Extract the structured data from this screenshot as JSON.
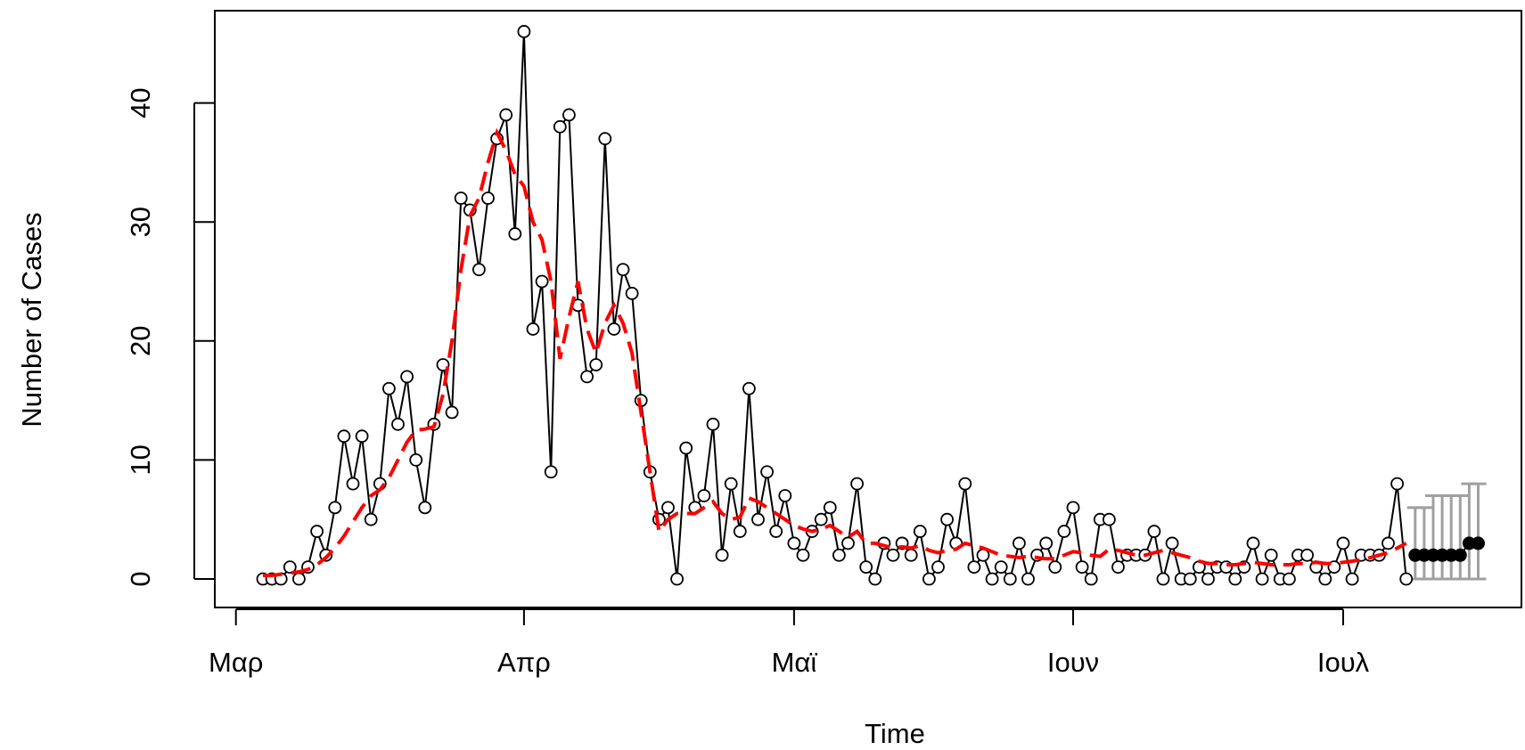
{
  "chart_data": {
    "type": "line",
    "xlabel": "Time",
    "ylabel": "Number of Cases",
    "ylim": [
      0,
      46
    ],
    "grid": false,
    "x_tick_labels": [
      "Μαρ",
      "Απρ",
      "Μαϊ",
      "Ιουν",
      "Ιουλ"
    ],
    "y_ticks": [
      0,
      10,
      20,
      30,
      40
    ],
    "colors": {
      "observed": "#000000",
      "fitted": "#ff0000",
      "forecast": "#000000",
      "interval": "#a0a0a0"
    },
    "series": [
      {
        "style": "black line with open circle markers",
        "values": [
          0,
          0,
          0,
          1,
          0,
          1,
          4,
          2,
          6,
          12,
          8,
          12,
          5,
          8,
          16,
          13,
          17,
          10,
          6,
          13,
          18,
          14,
          32,
          31,
          26,
          32,
          37,
          39,
          29,
          46,
          21,
          25,
          9,
          38,
          39,
          23,
          17,
          18,
          37,
          21,
          26,
          24,
          15,
          9,
          5,
          6,
          0,
          11,
          6,
          7,
          13,
          2,
          8,
          4,
          16,
          5,
          9,
          4,
          7,
          3,
          2,
          4,
          5,
          6,
          2,
          3,
          8,
          1,
          0,
          3,
          2,
          3,
          2,
          4,
          0,
          1,
          5,
          3,
          8,
          1,
          2,
          0,
          1,
          0,
          3,
          0,
          2,
          3,
          1,
          4,
          6,
          1,
          0,
          5,
          5,
          1,
          2,
          2,
          2,
          4,
          0,
          3,
          0,
          0,
          1,
          0,
          1,
          1,
          0,
          1,
          3,
          0,
          2,
          0,
          0,
          2,
          2,
          1,
          0,
          1,
          3,
          0,
          2,
          2,
          2,
          3,
          8,
          0
        ]
      },
      {
        "style": "red dashed line",
        "values": [
          0.3,
          0.3,
          0.4,
          0.5,
          0.6,
          0.8,
          1.2,
          1.8,
          2.6,
          3.6,
          4.8,
          6.0,
          7.0,
          7.5,
          8.5,
          10.0,
          11.5,
          12.5,
          12.6,
          12.8,
          15.5,
          20.0,
          26.0,
          30.5,
          32.0,
          35.0,
          37.5,
          36.0,
          34.0,
          33.0,
          30.0,
          28.5,
          25.0,
          18.5,
          22.0,
          25.0,
          21.0,
          19.0,
          21.5,
          23.0,
          21.5,
          19.0,
          14.0,
          9.0,
          4.0,
          5.0,
          5.5,
          5.5,
          5.5,
          6.0,
          6.5,
          5.5,
          5.0,
          5.2,
          6.8,
          6.5,
          6.0,
          5.5,
          5.0,
          4.5,
          4.2,
          4.0,
          4.2,
          4.5,
          4.0,
          3.5,
          4.0,
          3.0,
          3.0,
          2.8,
          2.6,
          2.7,
          2.6,
          2.8,
          2.4,
          2.2,
          2.4,
          2.5,
          3.0,
          2.8,
          2.6,
          2.3,
          2.0,
          1.9,
          1.8,
          1.9,
          1.8,
          1.7,
          1.7,
          2.0,
          2.3,
          2.2,
          2.0,
          1.9,
          2.5,
          2.4,
          2.2,
          2.0,
          2.0,
          2.2,
          2.4,
          2.2,
          2.0,
          1.8,
          1.5,
          1.3,
          1.3,
          1.2,
          1.2,
          1.3,
          1.4,
          1.3,
          1.2,
          1.2,
          1.2,
          1.3,
          1.3,
          1.4,
          1.3,
          1.3,
          1.4,
          1.5,
          1.6,
          1.8,
          2.0,
          2.2,
          2.6,
          3.0
        ]
      },
      {
        "style": "black filled circle markers (forecast)",
        "values": [
          2,
          2,
          2,
          2,
          2,
          2,
          3,
          3
        ]
      },
      {
        "style": "grey vertical interval bars (forecast)",
        "lower": [
          0,
          0,
          0,
          0,
          0,
          0,
          0,
          0
        ],
        "upper": [
          6,
          6,
          7,
          7,
          7,
          7,
          8,
          8
        ]
      }
    ]
  }
}
